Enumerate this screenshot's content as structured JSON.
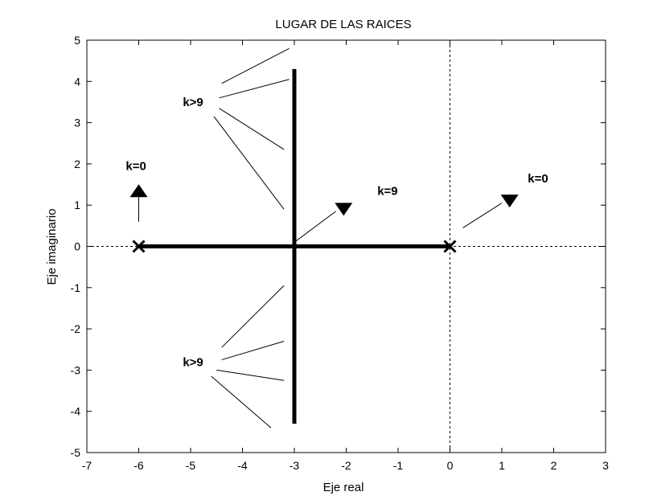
{
  "chart_data": {
    "type": "line",
    "title": "LUGAR DE LAS RAICES",
    "xlabel": "Eje real",
    "ylabel": "Eje imaginario",
    "xlim": [
      -7,
      3
    ],
    "ylim": [
      -5,
      5
    ],
    "xticks": [
      -7,
      -6,
      -5,
      -4,
      -3,
      -2,
      -1,
      0,
      1,
      2,
      3
    ],
    "yticks": [
      -5,
      -4,
      -3,
      -2,
      -1,
      0,
      1,
      2,
      3,
      4,
      5
    ],
    "xtick_labels": [
      "-7",
      "-6",
      "-5",
      "-4",
      "-3",
      "-2",
      "-1",
      "0",
      "1",
      "2",
      "3"
    ],
    "ytick_labels": [
      "-5",
      "-4",
      "-3",
      "-2",
      "-1",
      "0",
      "1",
      "2",
      "3",
      "4",
      "5"
    ],
    "grid": false,
    "reference_lines": {
      "horizontal_y": 0,
      "vertical_x": 0,
      "style": "dotted"
    },
    "series": [
      {
        "x": [
          -6,
          0
        ],
        "y": [
          0,
          0
        ]
      },
      {
        "x": [
          -3,
          -3
        ],
        "y": [
          -4.3,
          4.3
        ]
      }
    ],
    "poles": [
      {
        "x": -6,
        "y": 0
      },
      {
        "x": 0,
        "y": 0
      }
    ],
    "annotations": [
      {
        "text": "k=0",
        "x": -6.25,
        "y": 1.85
      },
      {
        "text": "k=0",
        "x": 1.5,
        "y": 1.55
      },
      {
        "text": "k=9",
        "x": -1.4,
        "y": 1.25
      },
      {
        "text": "k>9",
        "x": -5.15,
        "y": 3.4
      },
      {
        "text": "k>9",
        "x": -5.15,
        "y": -2.9
      }
    ],
    "arrows": [
      {
        "type": "line",
        "from": [
          -6,
          0.6
        ],
        "to": [
          -6,
          1.2
        ]
      },
      {
        "type": "marker",
        "direction": "up",
        "x": -6,
        "y": 1.35
      },
      {
        "type": "line",
        "from": [
          -3,
          0.1
        ],
        "to": [
          -2.2,
          0.85
        ]
      },
      {
        "type": "marker",
        "direction": "down",
        "x": -2.05,
        "y": 0.9
      },
      {
        "type": "line",
        "from": [
          0.25,
          0.45
        ],
        "to": [
          1.0,
          1.05
        ]
      },
      {
        "type": "marker",
        "direction": "down",
        "x": 1.15,
        "y": 1.1
      }
    ],
    "pointer_lines": [
      {
        "from": [
          -4.4,
          3.95
        ],
        "to": [
          -3.1,
          4.8
        ]
      },
      {
        "from": [
          -4.45,
          3.6
        ],
        "to": [
          -3.1,
          4.05
        ]
      },
      {
        "from": [
          -4.45,
          3.35
        ],
        "to": [
          -3.2,
          2.35
        ]
      },
      {
        "from": [
          -4.55,
          3.15
        ],
        "to": [
          -3.2,
          0.9
        ]
      },
      {
        "from": [
          -3.2,
          -0.95
        ],
        "to": [
          -4.4,
          -2.45
        ]
      },
      {
        "from": [
          -3.2,
          -2.3
        ],
        "to": [
          -4.4,
          -2.75
        ]
      },
      {
        "from": [
          -3.2,
          -3.25
        ],
        "to": [
          -4.5,
          -3.0
        ]
      },
      {
        "from": [
          -3.45,
          -4.4
        ],
        "to": [
          -4.6,
          -3.15
        ]
      }
    ]
  }
}
